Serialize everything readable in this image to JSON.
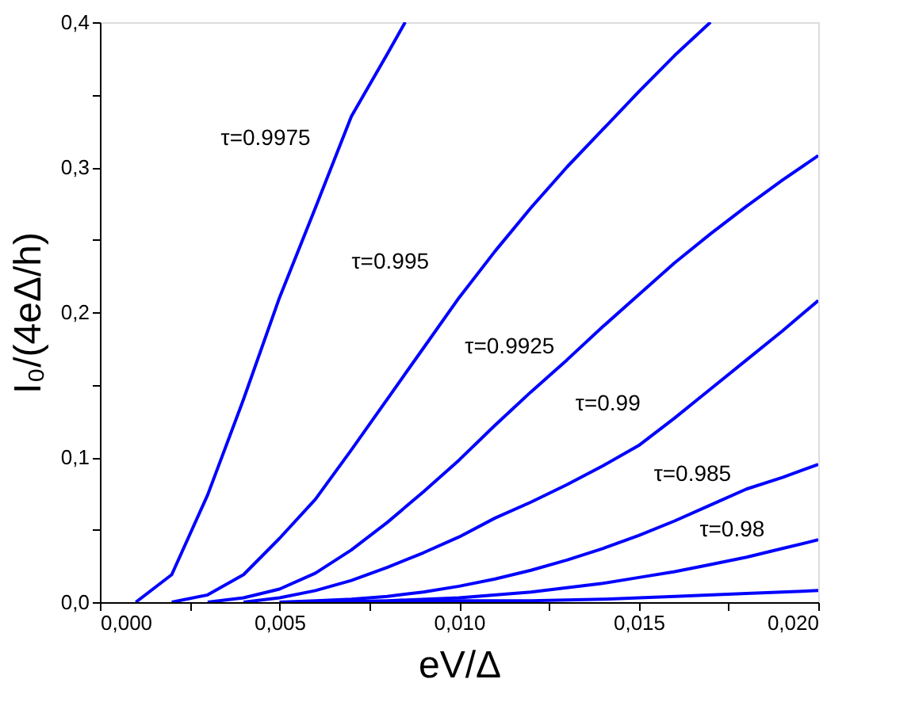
{
  "chart_data": {
    "type": "line",
    "xlabel": "eV/Δ",
    "ylabel": "I₀/(4eΔ/h)",
    "xlim": [
      0,
      0.02
    ],
    "ylim": [
      0,
      0.4
    ],
    "xticks": [
      {
        "value": 0,
        "label": "0,000"
      },
      {
        "value": 0.0025,
        "label": null
      },
      {
        "value": 0.005,
        "label": "0,005"
      },
      {
        "value": 0.0075,
        "label": null
      },
      {
        "value": 0.01,
        "label": "0,010"
      },
      {
        "value": 0.0125,
        "label": null
      },
      {
        "value": 0.015,
        "label": "0,015"
      },
      {
        "value": 0.0175,
        "label": null
      },
      {
        "value": 0.02,
        "label": "0,020"
      }
    ],
    "yticks": [
      {
        "value": 0,
        "label": "0,0"
      },
      {
        "value": 0.05,
        "label": null
      },
      {
        "value": 0.1,
        "label": "0,1"
      },
      {
        "value": 0.15,
        "label": null
      },
      {
        "value": 0.2,
        "label": "0,2"
      },
      {
        "value": 0.25,
        "label": null
      },
      {
        "value": 0.3,
        "label": "0,3"
      },
      {
        "value": 0.35,
        "label": null
      },
      {
        "value": 0.4,
        "label": "0,4"
      }
    ],
    "grid": false,
    "legend": false,
    "marker": "none",
    "line_style": "solid",
    "series": [
      {
        "name": "τ=0.9975",
        "color": "#0000ff",
        "x": [
          0.001,
          0.002,
          0.003,
          0.004,
          0.005,
          0.006,
          0.007,
          0.008,
          0.0085
        ],
        "values": [
          0,
          0.019,
          0.074,
          0.14,
          0.21,
          0.272,
          0.335,
          0.378,
          0.4
        ]
      },
      {
        "name": "τ=0.995",
        "color": "#0000ff",
        "x": [
          0.002,
          0.003,
          0.004,
          0.005,
          0.006,
          0.007,
          0.008,
          0.009,
          0.01,
          0.011,
          0.012,
          0.013,
          0.014,
          0.015,
          0.016,
          0.017
        ],
        "values": [
          0,
          0.005,
          0.019,
          0.044,
          0.071,
          0.105,
          0.14,
          0.175,
          0.21,
          0.242,
          0.272,
          0.3,
          0.326,
          0.352,
          0.377,
          0.4
        ]
      },
      {
        "name": "τ=0.9925",
        "color": "#0000ff",
        "x": [
          0.003,
          0.004,
          0.005,
          0.006,
          0.007,
          0.008,
          0.009,
          0.01,
          0.011,
          0.012,
          0.013,
          0.014,
          0.015,
          0.016,
          0.017,
          0.018,
          0.019,
          0.02
        ],
        "values": [
          0,
          0.003,
          0.009,
          0.02,
          0.036,
          0.055,
          0.076,
          0.098,
          0.122,
          0.145,
          0.167,
          0.19,
          0.212,
          0.234,
          0.254,
          0.273,
          0.291,
          0.308
        ]
      },
      {
        "name": "τ=0.99",
        "color": "#0000ff",
        "x": [
          0.004,
          0.005,
          0.006,
          0.007,
          0.008,
          0.009,
          0.01,
          0.011,
          0.012,
          0.013,
          0.014,
          0.015,
          0.016,
          0.017,
          0.018,
          0.019,
          0.02
        ],
        "values": [
          0,
          0.003,
          0.008,
          0.015,
          0.024,
          0.034,
          0.045,
          0.058,
          0.069,
          0.081,
          0.094,
          0.108,
          0.127,
          0.147,
          0.167,
          0.187,
          0.208
        ]
      },
      {
        "name": "τ=0.985",
        "color": "#0000ff",
        "x": [
          0.005,
          0.006,
          0.007,
          0.008,
          0.009,
          0.01,
          0.011,
          0.012,
          0.013,
          0.014,
          0.015,
          0.016,
          0.017,
          0.018,
          0.019,
          0.02
        ],
        "values": [
          0,
          0.001,
          0.002,
          0.004,
          0.007,
          0.011,
          0.016,
          0.022,
          0.029,
          0.037,
          0.046,
          0.056,
          0.067,
          0.078,
          0.086,
          0.095
        ]
      },
      {
        "name": "τ=0.98",
        "color": "#0000ff",
        "x": [
          0.006,
          0.008,
          0.01,
          0.012,
          0.014,
          0.015,
          0.016,
          0.017,
          0.018,
          0.019,
          0.02
        ],
        "values": [
          0,
          0.001,
          0.003,
          0.007,
          0.013,
          0.017,
          0.021,
          0.026,
          0.031,
          0.037,
          0.043
        ]
      },
      {
        "color": "#0000ff",
        "x": [
          0.008,
          0.01,
          0.012,
          0.014,
          0.016,
          0.018,
          0.02
        ],
        "values": [
          0,
          0.001,
          0.001,
          0.002,
          0.004,
          0.006,
          0.008
        ]
      }
    ]
  }
}
